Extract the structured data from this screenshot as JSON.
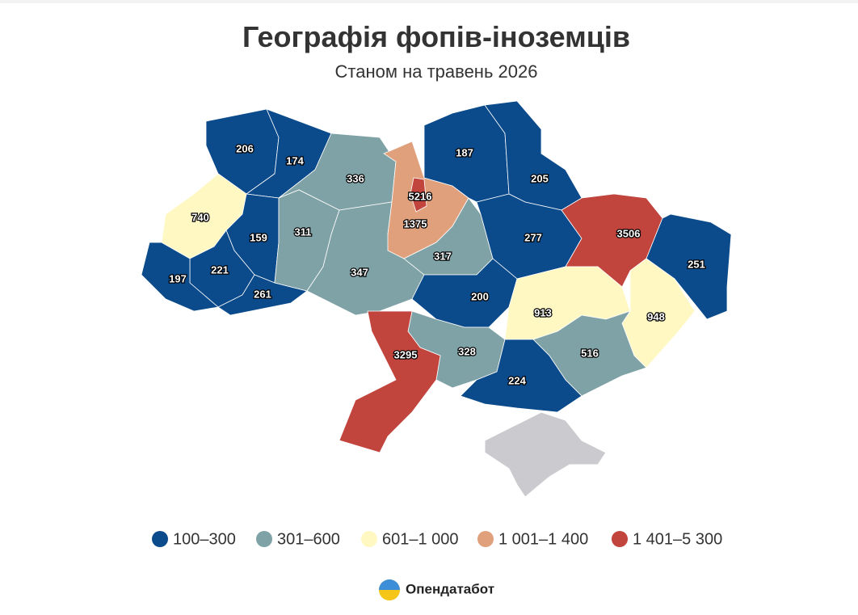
{
  "header": {
    "title": "Географія фопів-іноземців",
    "subtitle": "Станом на травень 2026"
  },
  "map": {
    "regions": [
      {
        "value": 206
      },
      {
        "value": 174
      },
      {
        "value": 740
      },
      {
        "value": 159
      },
      {
        "value": 221
      },
      {
        "value": 197
      },
      {
        "value": 261
      },
      {
        "value": 336
      },
      {
        "value": 311
      },
      {
        "value": 347
      },
      {
        "value": 1375
      },
      {
        "value": 5216
      },
      {
        "value": 317
      },
      {
        "value": 187
      },
      {
        "value": 205
      },
      {
        "value": 277
      },
      {
        "value": 3506
      },
      {
        "value": 251
      },
      {
        "value": 200
      },
      {
        "value": 913
      },
      {
        "value": 948
      },
      {
        "value": 516
      },
      {
        "value": 328
      },
      {
        "value": 224
      },
      {
        "value": 3295
      }
    ]
  },
  "legend": {
    "bins": [
      {
        "label": "100–300",
        "min": 100,
        "max": 300,
        "color": "#0b4a8b"
      },
      {
        "label": "301–600",
        "min": 301,
        "max": 600,
        "color": "#7fa2a6"
      },
      {
        "label": "601–1 000",
        "min": 601,
        "max": 1000,
        "color": "#fff8c2"
      },
      {
        "label": "1 001–1 400",
        "min": 1001,
        "max": 1400,
        "color": "#e0a07c"
      },
      {
        "label": "1 401–5 300",
        "min": 1401,
        "max": 5300,
        "color": "#c1443d"
      }
    ]
  },
  "footer": {
    "brand": "Опендатабот"
  }
}
